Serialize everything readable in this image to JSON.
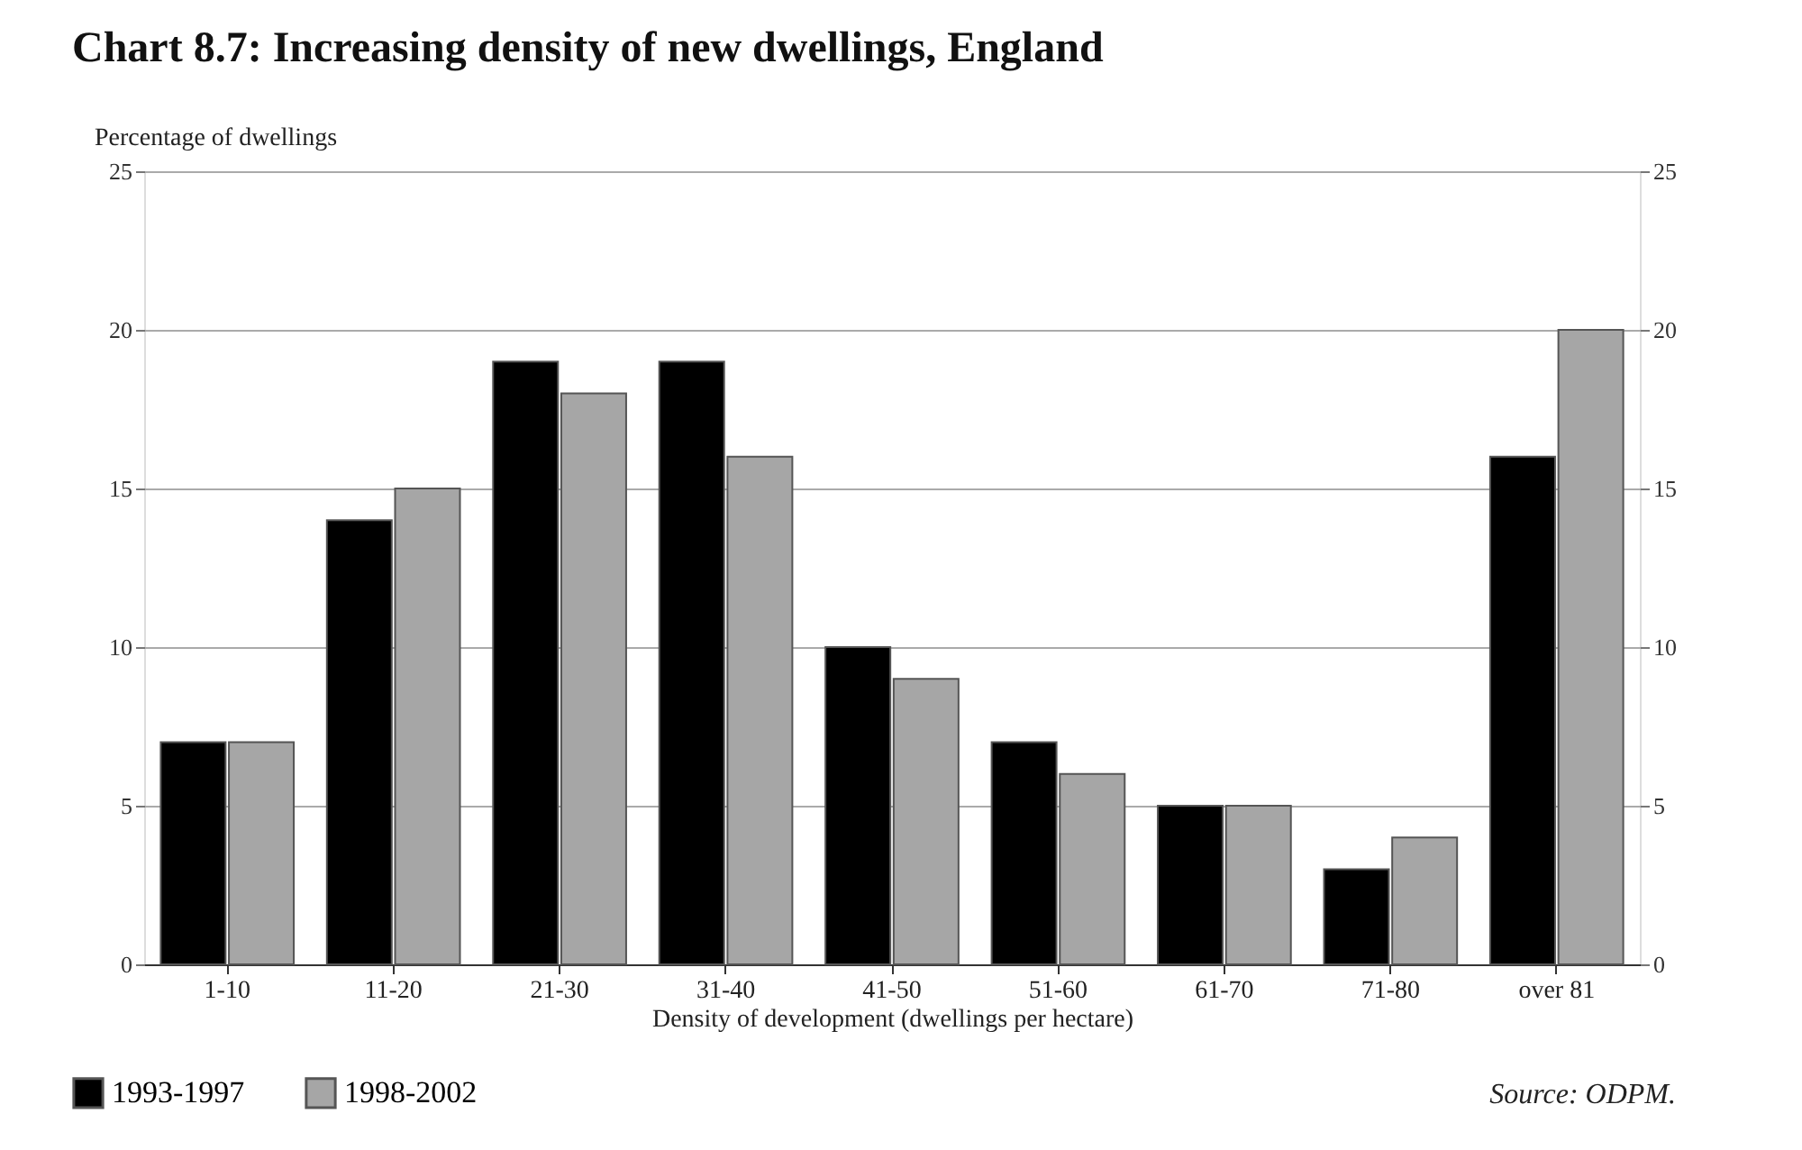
{
  "chart_data": {
    "type": "bar",
    "title": "Chart 8.7: Increasing density of new dwellings, England",
    "ylabel": "Percentage of dwellings",
    "xlabel": "Density of development (dwellings per hectare)",
    "categories": [
      "1-10",
      "11-20",
      "21-30",
      "31-40",
      "41-50",
      "51-60",
      "61-70",
      "71-80",
      "over 81"
    ],
    "series": [
      {
        "name": "1993-1997",
        "color": "#000000",
        "values": [
          7,
          14,
          19,
          19,
          10,
          7,
          5,
          3,
          16
        ]
      },
      {
        "name": "1998-2002",
        "color": "#a6a6a6",
        "values": [
          7,
          15,
          18,
          16,
          9,
          6,
          5,
          4,
          20
        ]
      }
    ],
    "ylim": [
      0,
      25
    ],
    "yticks": [
      0,
      5,
      10,
      15,
      20,
      25
    ],
    "y2lim": [
      0,
      25
    ],
    "y2ticks": [
      0,
      5,
      10,
      15,
      20,
      25
    ],
    "grid": "y",
    "legend": "bottom left",
    "annotations": [
      "Source: ODPM."
    ]
  }
}
